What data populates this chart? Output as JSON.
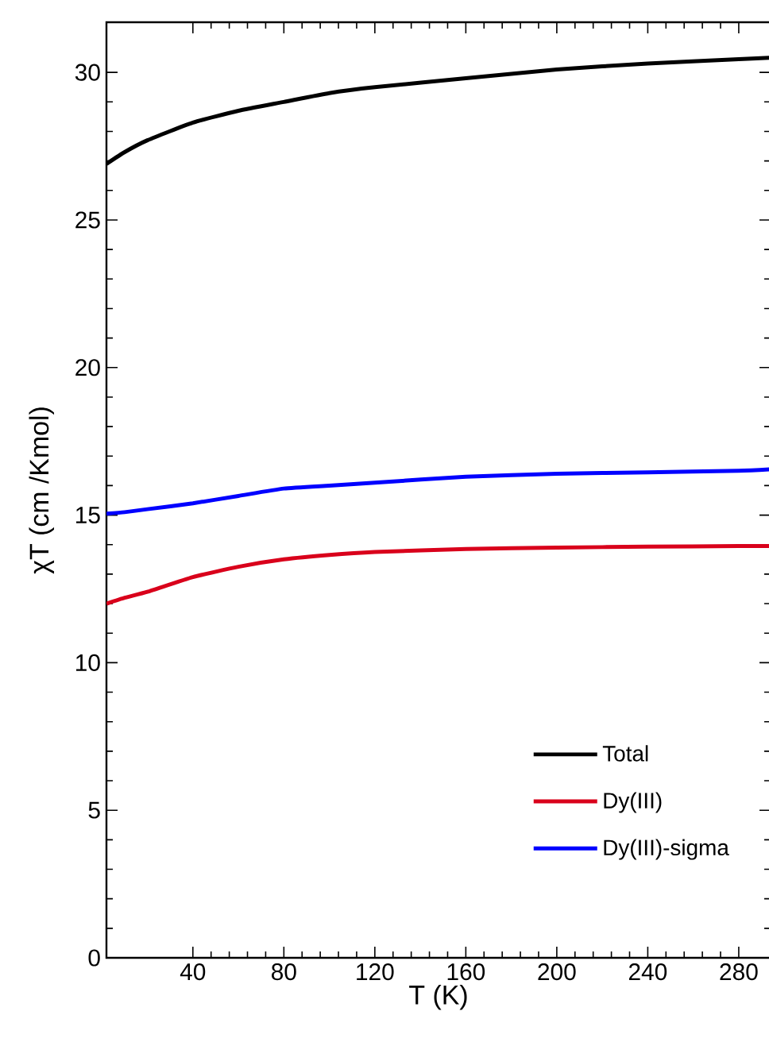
{
  "chart_data": {
    "type": "line",
    "xlabel": "T (K)",
    "ylabel": "χT (cm /Kmol)",
    "x": [
      2,
      10,
      20,
      40,
      60,
      80,
      100,
      120,
      160,
      200,
      240,
      280,
      294
    ],
    "series": [
      {
        "name": "Total",
        "color": "#000000",
        "values": [
          26.9,
          27.3,
          27.7,
          28.3,
          28.7,
          29.0,
          29.3,
          29.5,
          29.8,
          30.1,
          30.3,
          30.45,
          30.5
        ]
      },
      {
        "name": "Dy(III)",
        "color": "#d9001b",
        "values": [
          12.0,
          12.2,
          12.4,
          12.9,
          13.25,
          13.5,
          13.65,
          13.75,
          13.85,
          13.9,
          13.93,
          13.95,
          13.95
        ]
      },
      {
        "name": "Dy(III)-sigma",
        "color": "#0000ff",
        "values": [
          15.05,
          15.1,
          15.2,
          15.4,
          15.65,
          15.9,
          16.0,
          16.1,
          16.3,
          16.4,
          16.45,
          16.5,
          16.55
        ]
      }
    ],
    "xlim": [
      2,
      294
    ],
    "xticks": [
      40,
      80,
      120,
      160,
      200,
      240,
      280
    ],
    "ylim": [
      0,
      31.7
    ],
    "yticks": [
      0,
      5,
      10,
      15,
      20,
      25,
      30
    ],
    "grid": false,
    "legend": "bottom right",
    "marker": "none",
    "line_style": "solid"
  }
}
